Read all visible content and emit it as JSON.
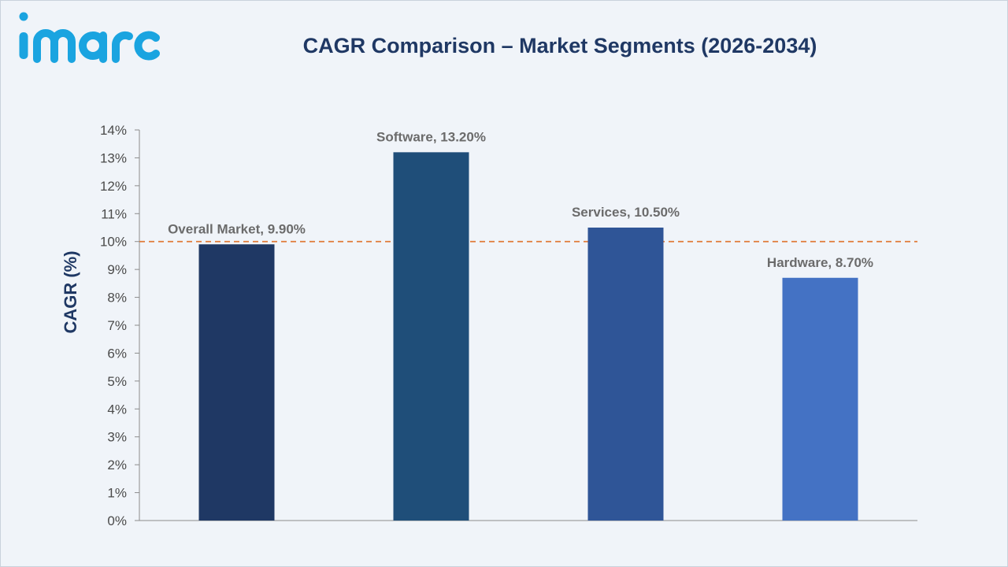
{
  "brand": {
    "logo_text": "imarc",
    "logo_color": "#1aa4e0"
  },
  "chart_data": {
    "type": "bar",
    "title": "CAGR Comparison – Market Segments (2026-2034)",
    "xlabel": "",
    "ylabel": "CAGR (%)",
    "ylim": [
      0,
      14
    ],
    "yticks": [
      0,
      1,
      2,
      3,
      4,
      5,
      6,
      7,
      8,
      9,
      10,
      11,
      12,
      13,
      14
    ],
    "ytick_labels": [
      "0%",
      "1%",
      "2%",
      "3%",
      "4%",
      "5%",
      "6%",
      "7%",
      "8%",
      "9%",
      "10%",
      "11%",
      "12%",
      "13%",
      "14%"
    ],
    "categories": [
      "Overall Market",
      "Software",
      "Services",
      "Hardware"
    ],
    "values": [
      9.9,
      13.2,
      10.5,
      8.7
    ],
    "data_labels": [
      "Overall Market, 9.90%",
      "Software, 13.20%",
      "Services, 10.50%",
      "Hardware, 8.70%"
    ],
    "bar_colors": [
      "#1f3864",
      "#1f4e79",
      "#2f5597",
      "#4472c4"
    ],
    "reference_line": {
      "value": 10,
      "style": "dashed",
      "color": "#e07b39"
    },
    "grid": false,
    "legend": "none"
  }
}
